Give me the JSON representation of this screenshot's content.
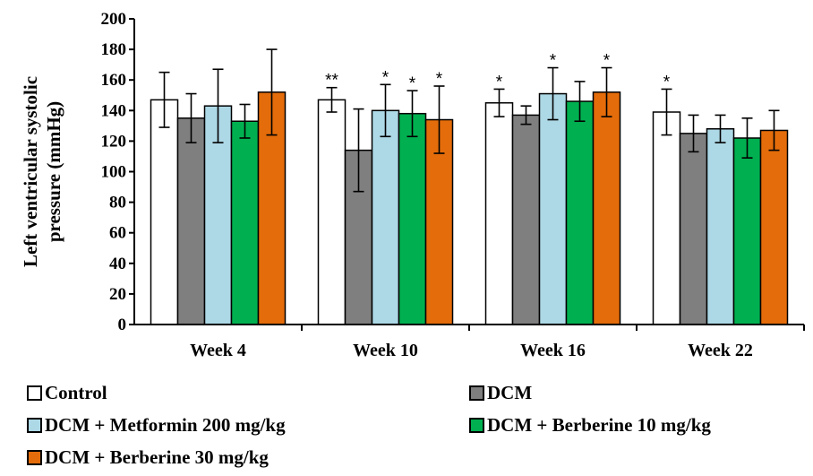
{
  "chart_data": {
    "type": "bar",
    "ylabel_lines": [
      "Left ventricular  systolic",
      "pressure (mmHg)"
    ],
    "ylim": [
      0,
      200
    ],
    "yticks": [
      0,
      20,
      40,
      60,
      80,
      100,
      120,
      140,
      160,
      180,
      200
    ],
    "categories": [
      "Week 4",
      "Week 10",
      "Week 16",
      "Week 22"
    ],
    "series": [
      {
        "name": "Control",
        "color": "#ffffff",
        "values": [
          147,
          147,
          145,
          139
        ],
        "errors": [
          18,
          8,
          9,
          15
        ],
        "annotations": [
          "",
          "**",
          "*",
          "*"
        ]
      },
      {
        "name": "DCM",
        "color": "#7f7f7f",
        "values": [
          135,
          114,
          137,
          125
        ],
        "errors": [
          16,
          27,
          6,
          12
        ],
        "annotations": [
          "",
          "",
          "",
          ""
        ]
      },
      {
        "name": "DCM + Metformin 200 mg/kg",
        "color": "#add8e6",
        "values": [
          143,
          140,
          151,
          128
        ],
        "errors": [
          24,
          17,
          17,
          9
        ],
        "annotations": [
          "",
          "*",
          "*",
          ""
        ]
      },
      {
        "name": "DCM + Berberine 10 mg/kg",
        "color": "#00b050",
        "values": [
          133,
          138,
          146,
          122
        ],
        "errors": [
          11,
          15,
          13,
          13
        ],
        "annotations": [
          "",
          "*",
          "",
          ""
        ]
      },
      {
        "name": "DCM + Berberine 30 mg/kg",
        "color": "#e46c0a",
        "values": [
          152,
          134,
          152,
          127
        ],
        "errors": [
          28,
          22,
          16,
          13
        ],
        "annotations": [
          "",
          "*",
          "*",
          ""
        ]
      }
    ],
    "grid": false,
    "legend_position": "bottom"
  }
}
